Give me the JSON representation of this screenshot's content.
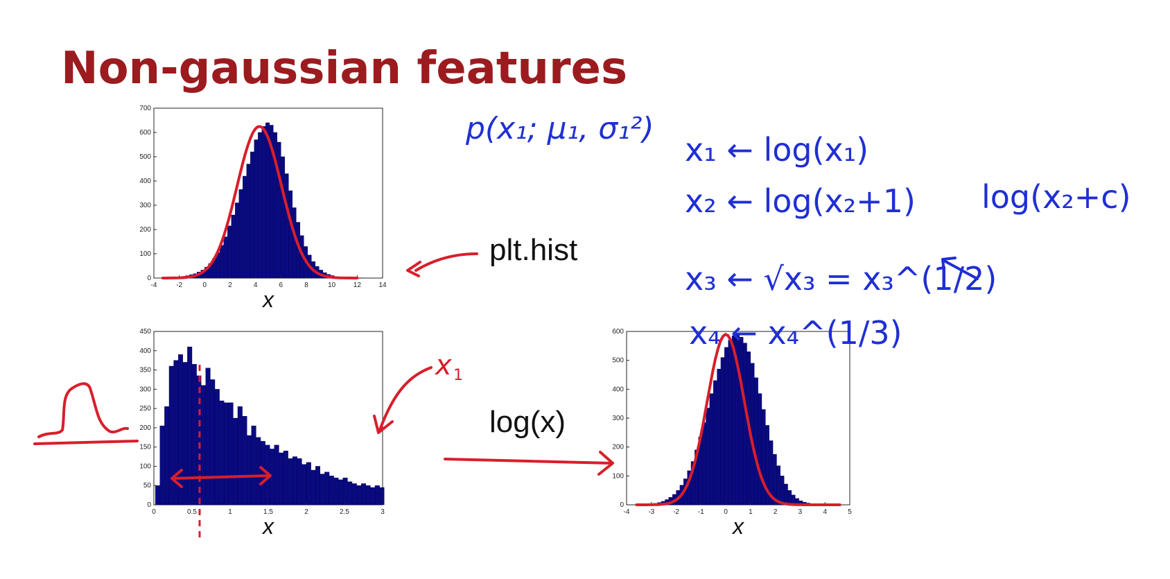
{
  "title": "Non-gaussian features",
  "annotations": {
    "plt_hist": "plt.hist",
    "log_x": "log(x)",
    "x1_label": "x₁",
    "gaussian_formula": "p(x₁; μ₁, σ₁²)",
    "transforms": [
      "x₁ ← log(x₁)",
      "x₂ ← log(x₂+1)",
      "log(x₂+c)",
      "x₃ ← √x₃ = x₃^(1/2)",
      "x₄ ← x₄^(1/3)"
    ]
  },
  "colors": {
    "title": "#9b1b1f",
    "bars": "#0a0a80",
    "ink_red": "#d81e2b",
    "ink_blue": "#1f2fd4"
  },
  "chart_data": [
    {
      "type": "bar",
      "xlabel": "x",
      "xlim": [
        -4,
        14
      ],
      "ylim": [
        0,
        700
      ],
      "xticks": [
        -4,
        -2,
        0,
        2,
        4,
        6,
        8,
        10,
        12,
        14
      ],
      "yticks": [
        0,
        100,
        200,
        300,
        400,
        500,
        600,
        700
      ],
      "bin_start": -3,
      "bin_width": 0.3,
      "values": [
        2,
        3,
        4,
        5,
        7,
        10,
        14,
        18,
        25,
        33,
        45,
        60,
        80,
        105,
        135,
        170,
        215,
        260,
        310,
        365,
        420,
        470,
        520,
        570,
        600,
        625,
        640,
        630,
        600,
        560,
        500,
        430,
        360,
        290,
        230,
        175,
        130,
        95,
        68,
        48,
        33,
        22,
        15,
        10,
        6,
        4,
        3,
        2,
        1,
        1,
        1,
        0,
        0
      ]
    },
    {
      "type": "bar",
      "xlabel": "x",
      "xlim": [
        0,
        3
      ],
      "ylim": [
        0,
        450
      ],
      "xticks": [
        0,
        0.5,
        1,
        1.5,
        2,
        2.5,
        3
      ],
      "yticks": [
        0,
        50,
        100,
        150,
        200,
        250,
        300,
        350,
        400,
        450
      ],
      "bin_start": 0.02,
      "bin_width": 0.06,
      "values": [
        50,
        205,
        255,
        360,
        375,
        390,
        370,
        410,
        365,
        335,
        310,
        355,
        325,
        300,
        270,
        265,
        265,
        225,
        255,
        230,
        180,
        205,
        175,
        165,
        155,
        145,
        155,
        135,
        140,
        120,
        125,
        120,
        105,
        110,
        90,
        100,
        80,
        85,
        75,
        70,
        65,
        70,
        60,
        55,
        50,
        55,
        50,
        45,
        50,
        45
      ]
    },
    {
      "type": "bar",
      "xlabel": "x",
      "xlim": [
        -4,
        5
      ],
      "ylim": [
        0,
        600
      ],
      "xticks": [
        -4,
        -3,
        -2,
        -1,
        0,
        1,
        2,
        3,
        4,
        5
      ],
      "yticks": [
        0,
        100,
        200,
        300,
        400,
        500,
        600
      ],
      "bin_start": -3.5,
      "bin_width": 0.15,
      "values": [
        1,
        1,
        2,
        3,
        5,
        8,
        12,
        18,
        26,
        36,
        50,
        68,
        90,
        118,
        150,
        190,
        235,
        285,
        335,
        385,
        430,
        470,
        510,
        545,
        570,
        585,
        590,
        580,
        560,
        530,
        490,
        440,
        385,
        330,
        275,
        222,
        175,
        135,
        100,
        72,
        50,
        34,
        22,
        14,
        9,
        6,
        4,
        3,
        2,
        1,
        1,
        1,
        0,
        0,
        0,
        0,
        0,
        0,
        0,
        0
      ]
    }
  ]
}
